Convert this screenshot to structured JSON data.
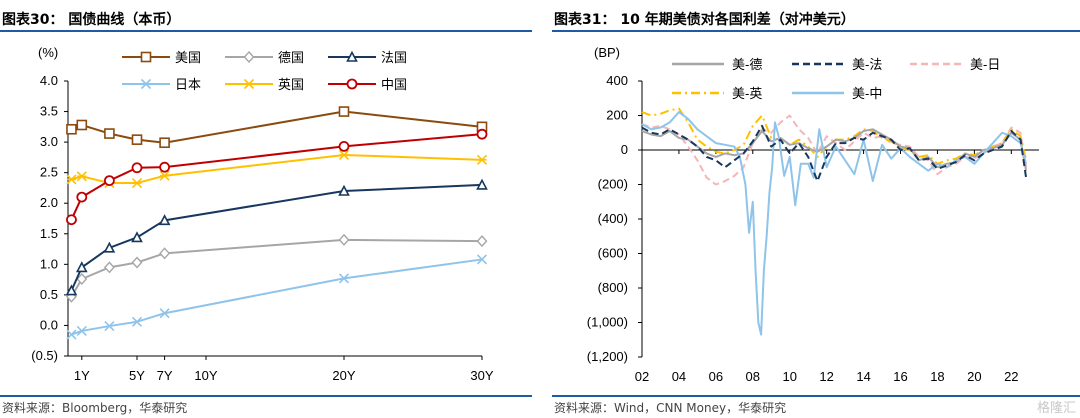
{
  "left": {
    "title": "图表30：  国债曲线（本币）",
    "source": "资料来源：Bloomberg，华泰研究"
  },
  "right": {
    "title": "图表31：  10 年期美债对各国利差（对冲美元）",
    "source": "资料来源：Wind，CNN Money，华泰研究"
  },
  "watermark": "格隆汇",
  "chart_data": [
    {
      "type": "line",
      "title": "图表30：  国债曲线（本币）",
      "ylabel": "(%)",
      "ylim": [
        -0.5,
        4.0
      ],
      "yticks": [
        -0.5,
        0,
        0.5,
        1.0,
        1.5,
        2.0,
        2.5,
        3.0,
        3.5,
        4.0
      ],
      "ytick_labels": [
        "(0.5)",
        "0.0",
        "0.5",
        "1.0",
        "1.5",
        "2.0",
        "2.5",
        "3.0",
        "3.5",
        "4.0"
      ],
      "x": [
        0.25,
        0.5,
        1,
        2,
        3,
        5,
        7,
        10,
        20,
        30
      ],
      "xticks": [
        1,
        5,
        7,
        10,
        20,
        30
      ],
      "xtick_labels": [
        "1Y",
        "5Y",
        "7Y",
        "10Y",
        "20Y",
        "30Y"
      ],
      "xlim": [
        0,
        30
      ],
      "legend": "top",
      "grid": false,
      "series": [
        {
          "name": "美国",
          "color": "#8B4A0F",
          "marker": "square",
          "values": [
            3.21,
            3.28,
            3.14,
            3.04,
            2.99,
            3.5,
            null,
            null,
            null,
            3.25
          ],
          "x": [
            0.25,
            1,
            3,
            5,
            7,
            20,
            null,
            null,
            null,
            30
          ]
        },
        {
          "name": "德国",
          "color": "#A6A6A6",
          "marker": "diamond",
          "values": [
            0.47,
            0.76,
            0.95,
            1.03,
            1.18,
            1.4,
            1.38
          ],
          "x": [
            0.25,
            1,
            3,
            5,
            7,
            20,
            30
          ]
        },
        {
          "name": "法国",
          "color": "#17375E",
          "marker": "triangle",
          "values": [
            0.57,
            0.95,
            1.27,
            1.44,
            1.72,
            2.2,
            2.3
          ],
          "x": [
            0.25,
            1,
            3,
            5,
            7,
            20,
            30
          ]
        },
        {
          "name": "日本",
          "color": "#8FC4EA",
          "marker": "x",
          "values": [
            -0.15,
            -0.09,
            -0.01,
            0.06,
            0.2,
            0.77,
            1.08
          ],
          "x": [
            0.25,
            1,
            3,
            5,
            7,
            20,
            30
          ]
        },
        {
          "name": "英国",
          "color": "#FFC000",
          "marker": "star",
          "values": [
            2.39,
            2.44,
            2.33,
            2.33,
            2.45,
            2.79,
            2.71
          ],
          "x": [
            0.25,
            1,
            3,
            5,
            7,
            20,
            30
          ]
        },
        {
          "name": "中国",
          "color": "#C00000",
          "marker": "circle",
          "values": [
            1.73,
            2.1,
            2.37,
            2.58,
            2.59,
            2.93,
            3.13
          ],
          "x": [
            0.25,
            1,
            3,
            5,
            7,
            20,
            30
          ]
        }
      ]
    },
    {
      "type": "line",
      "title": "图表31：  10 年期美债对各国利差（对冲美元）",
      "ylabel": "(BP)",
      "ylim": [
        -1200,
        400
      ],
      "yticks": [
        -1200,
        -1000,
        -800,
        -600,
        -400,
        -200,
        0,
        200,
        400
      ],
      "ytick_labels": [
        "(1,200)",
        "(1,000)",
        "(800)",
        "(600)",
        "(400)",
        "(200)",
        "0",
        "200",
        "400"
      ],
      "xlim": [
        2002,
        2023.5
      ],
      "xticks": [
        2002,
        2004,
        2006,
        2008,
        2010,
        2012,
        2014,
        2016,
        2018,
        2020,
        2022
      ],
      "xtick_labels": [
        "02",
        "04",
        "06",
        "08",
        "10",
        "12",
        "14",
        "16",
        "18",
        "20",
        "22"
      ],
      "legend": "top",
      "grid": false,
      "series": [
        {
          "name": "美-德",
          "color": "#A6A6A6",
          "dash": "solid",
          "x": [
            2002.0,
            2002.5,
            2003.0,
            2003.5,
            2004.0,
            2004.5,
            2005.0,
            2005.5,
            2006.0,
            2006.5,
            2007.0,
            2007.5,
            2008.0,
            2008.5,
            2009.0,
            2009.5,
            2010.0,
            2010.5,
            2011.0,
            2011.5,
            2012.0,
            2012.5,
            2013.0,
            2013.5,
            2014.0,
            2014.5,
            2015.0,
            2015.5,
            2016.0,
            2016.5,
            2017.0,
            2017.5,
            2018.0,
            2018.5,
            2019.0,
            2019.5,
            2020.0,
            2020.5,
            2021.0,
            2021.5,
            2022.0,
            2022.5,
            2022.8
          ],
          "values": [
            110,
            90,
            80,
            110,
            70,
            60,
            20,
            -20,
            -40,
            -20,
            -30,
            -20,
            40,
            110,
            50,
            70,
            30,
            40,
            10,
            -10,
            20,
            60,
            50,
            70,
            110,
            120,
            90,
            60,
            20,
            10,
            -60,
            -40,
            -100,
            -80,
            -70,
            -20,
            -40,
            0,
            10,
            30,
            100,
            60,
            -120
          ]
        },
        {
          "name": "美-法",
          "color": "#17375E",
          "dash": "dashed",
          "x": [
            2002.0,
            2002.5,
            2003.0,
            2003.5,
            2004.0,
            2004.5,
            2005.0,
            2005.5,
            2006.0,
            2006.5,
            2007.0,
            2007.5,
            2008.0,
            2008.5,
            2009.0,
            2009.5,
            2010.0,
            2010.5,
            2011.0,
            2011.5,
            2012.0,
            2012.5,
            2013.0,
            2013.5,
            2014.0,
            2014.5,
            2015.0,
            2015.5,
            2016.0,
            2016.5,
            2017.0,
            2017.5,
            2018.0,
            2018.5,
            2019.0,
            2019.5,
            2020.0,
            2020.5,
            2021.0,
            2021.5,
            2022.0,
            2022.5,
            2022.8
          ],
          "values": [
            130,
            100,
            90,
            120,
            90,
            60,
            20,
            -40,
            -60,
            -100,
            -60,
            -20,
            50,
            140,
            20,
            60,
            -20,
            40,
            -40,
            -180,
            -40,
            40,
            40,
            70,
            60,
            100,
            80,
            60,
            0,
            10,
            -60,
            -50,
            -110,
            -90,
            -70,
            -30,
            -60,
            -20,
            0,
            20,
            110,
            60,
            -160
          ]
        },
        {
          "name": "美-日",
          "color": "#F4B6B6",
          "dash": "dashed",
          "x": [
            2002.0,
            2002.5,
            2003.0,
            2003.5,
            2004.0,
            2004.5,
            2005.0,
            2005.5,
            2006.0,
            2006.5,
            2007.0,
            2007.5,
            2008.0,
            2008.5,
            2009.0,
            2009.5,
            2010.0,
            2010.5,
            2011.0,
            2011.5,
            2012.0,
            2012.5,
            2013.0,
            2013.5,
            2014.0,
            2014.5,
            2015.0,
            2015.5,
            2016.0,
            2016.5,
            2017.0,
            2017.5,
            2018.0,
            2018.5,
            2019.0,
            2019.5,
            2020.0,
            2020.5,
            2021.0,
            2021.5,
            2022.0,
            2022.5,
            2022.8
          ],
          "values": [
            150,
            130,
            140,
            120,
            90,
            20,
            -60,
            -160,
            -200,
            -180,
            -150,
            -100,
            40,
            120,
            100,
            160,
            200,
            120,
            70,
            -20,
            80,
            40,
            0,
            50,
            100,
            70,
            80,
            40,
            30,
            20,
            -40,
            -60,
            -140,
            -100,
            -80,
            -40,
            -50,
            -20,
            20,
            40,
            130,
            100,
            -100
          ]
        },
        {
          "name": "美-英",
          "color": "#FFC000",
          "dash": "dashdot",
          "x": [
            2002.0,
            2002.5,
            2003.0,
            2003.5,
            2004.0,
            2004.5,
            2005.0,
            2005.5,
            2006.0,
            2006.5,
            2007.0,
            2007.5,
            2008.0,
            2008.5,
            2009.0,
            2009.5,
            2010.0,
            2010.5,
            2011.0,
            2011.5,
            2012.0,
            2012.5,
            2013.0,
            2013.5,
            2014.0,
            2014.5,
            2015.0,
            2015.5,
            2016.0,
            2016.5,
            2017.0,
            2017.5,
            2018.0,
            2018.5,
            2019.0,
            2019.5,
            2020.0,
            2020.5,
            2021.0,
            2021.5,
            2022.0,
            2022.5,
            2022.8
          ],
          "values": [
            220,
            200,
            210,
            230,
            240,
            160,
            60,
            20,
            -10,
            -20,
            0,
            30,
            140,
            200,
            70,
            60,
            30,
            60,
            20,
            -40,
            20,
            60,
            60,
            80,
            120,
            110,
            70,
            50,
            10,
            0,
            -40,
            -30,
            -80,
            -60,
            -50,
            -20,
            -30,
            0,
            20,
            40,
            120,
            80,
            -60
          ]
        },
        {
          "name": "美-中",
          "color": "#8FC4EA",
          "dash": "solid",
          "x": [
            2002.0,
            2002.5,
            2003.0,
            2003.5,
            2004.0,
            2004.5,
            2005.0,
            2005.5,
            2006.0,
            2006.5,
            2007.0,
            2007.3,
            2007.6,
            2007.8,
            2008.0,
            2008.15,
            2008.3,
            2008.45,
            2008.6,
            2008.75,
            2008.9,
            2009.05,
            2009.2,
            2009.4,
            2009.7,
            2010.0,
            2010.3,
            2010.6,
            2011.0,
            2011.3,
            2011.6,
            2012.0,
            2012.5,
            2013.0,
            2013.5,
            2014.0,
            2014.5,
            2015.0,
            2015.5,
            2016.0,
            2016.5,
            2017.0,
            2017.5,
            2018.0,
            2018.5,
            2019.0,
            2019.5,
            2020.0,
            2020.5,
            2021.0,
            2021.5,
            2022.0,
            2022.5,
            2022.8
          ],
          "values": [
            150,
            120,
            130,
            160,
            220,
            180,
            120,
            80,
            40,
            30,
            20,
            -40,
            -200,
            -480,
            -300,
            -700,
            -1000,
            -1070,
            -700,
            -500,
            -250,
            -100,
            160,
            80,
            -150,
            -40,
            -320,
            -80,
            -80,
            -160,
            120,
            -100,
            20,
            -60,
            -140,
            60,
            -180,
            30,
            -50,
            10,
            -40,
            -80,
            -120,
            -80,
            -100,
            -60,
            -40,
            -80,
            -20,
            40,
            100,
            80,
            40,
            -80
          ]
        }
      ]
    }
  ]
}
